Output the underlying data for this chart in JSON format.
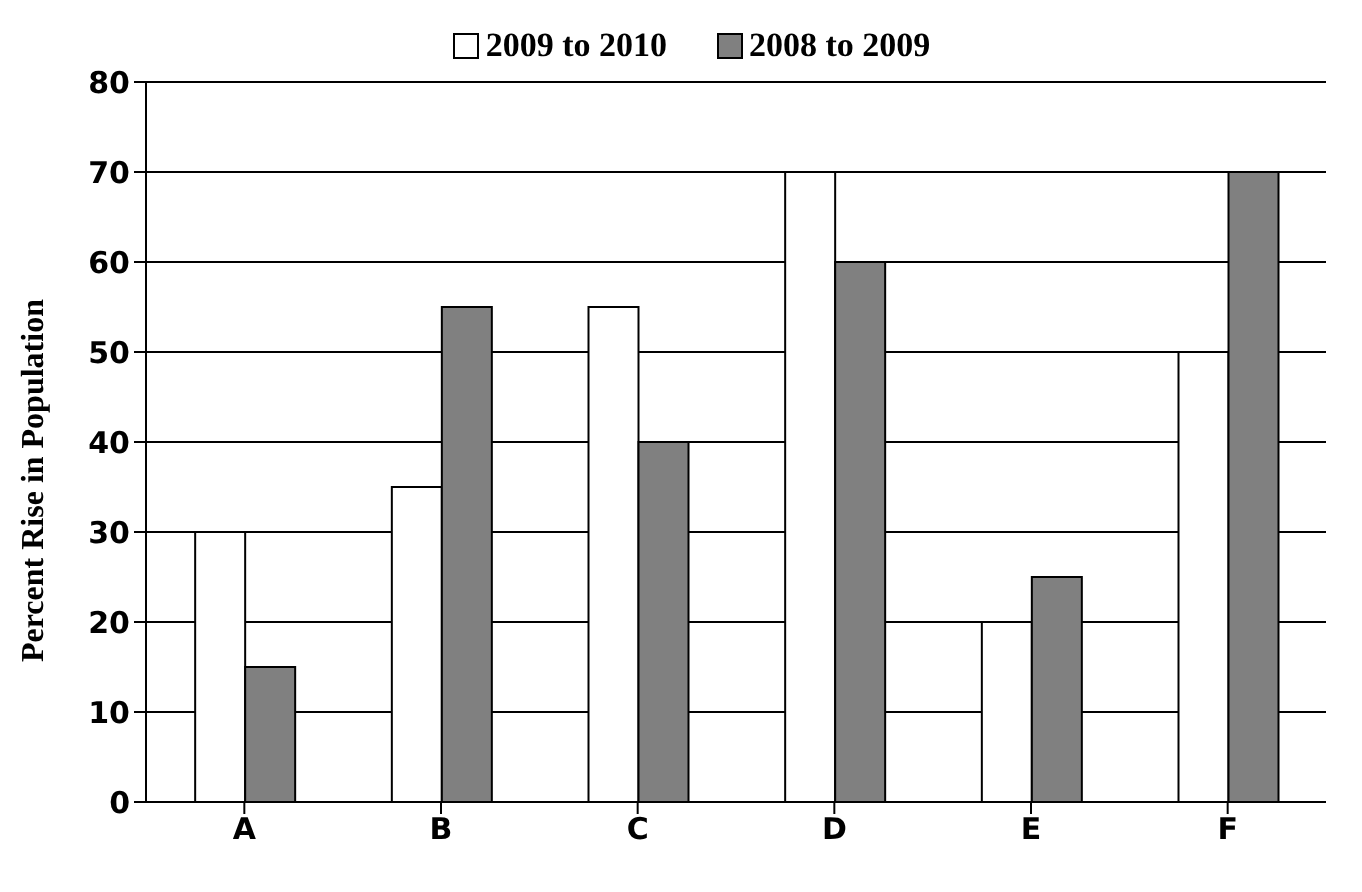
{
  "chart_data": {
    "type": "bar",
    "ylabel": "Percent Rise in Population",
    "categories": [
      "A",
      "B",
      "C",
      "D",
      "E",
      "F"
    ],
    "series": [
      {
        "name": "2009 to 2010",
        "color": "#ffffff",
        "values": [
          30,
          35,
          55,
          70,
          20,
          50
        ]
      },
      {
        "name": "2008 to 2009",
        "color": "#808080",
        "values": [
          15,
          55,
          40,
          60,
          25,
          70
        ]
      }
    ],
    "ylim": [
      0,
      80
    ],
    "yticks": [
      0,
      10,
      20,
      30,
      40,
      50,
      60,
      70,
      80
    ],
    "grid": "y",
    "legend": "top"
  }
}
